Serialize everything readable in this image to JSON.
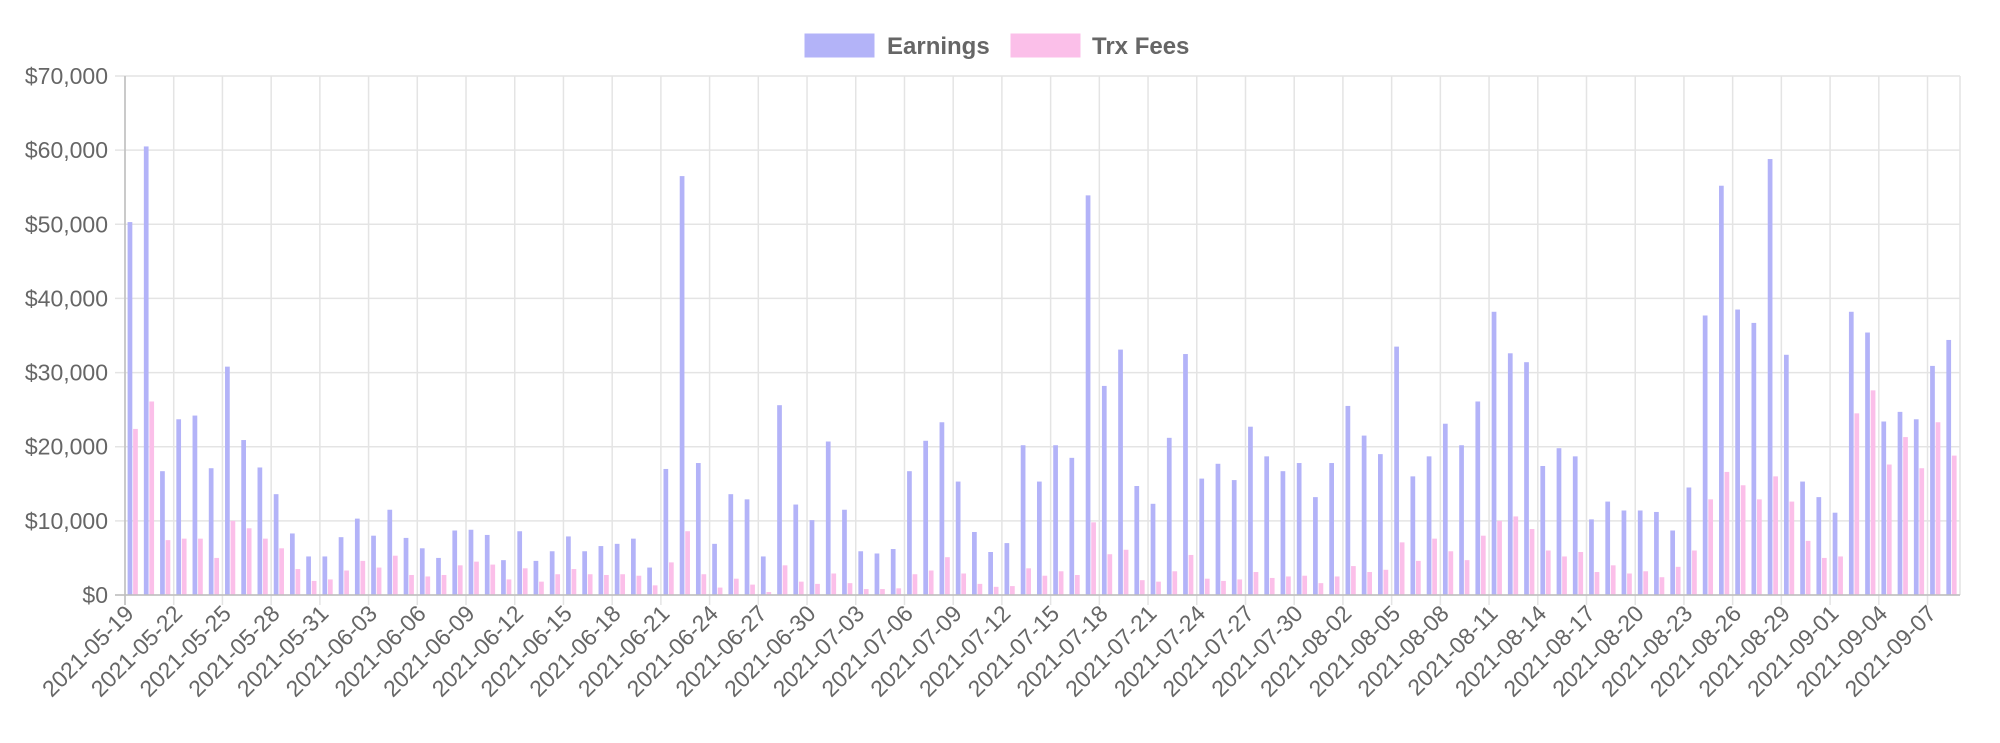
{
  "chart_data": {
    "type": "bar",
    "categories": [
      "2021-05-19",
      "2021-05-20",
      "2021-05-21",
      "2021-05-22",
      "2021-05-23",
      "2021-05-24",
      "2021-05-25",
      "2021-05-26",
      "2021-05-27",
      "2021-05-28",
      "2021-05-29",
      "2021-05-30",
      "2021-05-31",
      "2021-06-01",
      "2021-06-02",
      "2021-06-03",
      "2021-06-04",
      "2021-06-05",
      "2021-06-06",
      "2021-06-07",
      "2021-06-08",
      "2021-06-09",
      "2021-06-10",
      "2021-06-11",
      "2021-06-12",
      "2021-06-13",
      "2021-06-14",
      "2021-06-15",
      "2021-06-16",
      "2021-06-17",
      "2021-06-18",
      "2021-06-19",
      "2021-06-20",
      "2021-06-21",
      "2021-06-22",
      "2021-06-23",
      "2021-06-24",
      "2021-06-25",
      "2021-06-26",
      "2021-06-27",
      "2021-06-28",
      "2021-06-29",
      "2021-06-30",
      "2021-07-01",
      "2021-07-02",
      "2021-07-03",
      "2021-07-04",
      "2021-07-05",
      "2021-07-06",
      "2021-07-07",
      "2021-07-08",
      "2021-07-09",
      "2021-07-10",
      "2021-07-11",
      "2021-07-12",
      "2021-07-13",
      "2021-07-14",
      "2021-07-15",
      "2021-07-16",
      "2021-07-17",
      "2021-07-18",
      "2021-07-19",
      "2021-07-20",
      "2021-07-21",
      "2021-07-22",
      "2021-07-23",
      "2021-07-24",
      "2021-07-25",
      "2021-07-26",
      "2021-07-27",
      "2021-07-28",
      "2021-07-29",
      "2021-07-30",
      "2021-07-31",
      "2021-08-01",
      "2021-08-02",
      "2021-08-03",
      "2021-08-04",
      "2021-08-05",
      "2021-08-06",
      "2021-08-07",
      "2021-08-08",
      "2021-08-09",
      "2021-08-10",
      "2021-08-11",
      "2021-08-12",
      "2021-08-13",
      "2021-08-14",
      "2021-08-15",
      "2021-08-16",
      "2021-08-17",
      "2021-08-18",
      "2021-08-19",
      "2021-08-20",
      "2021-08-21",
      "2021-08-22",
      "2021-08-23",
      "2021-08-24",
      "2021-08-25",
      "2021-08-26",
      "2021-08-27",
      "2021-08-28",
      "2021-08-29",
      "2021-08-30",
      "2021-08-31",
      "2021-09-01",
      "2021-09-02",
      "2021-09-03",
      "2021-09-04",
      "2021-09-05",
      "2021-09-06",
      "2021-09-07",
      "2021-09-08"
    ],
    "x_tick_labels": [
      "2021-05-19",
      "2021-05-22",
      "2021-05-25",
      "2021-05-28",
      "2021-05-31",
      "2021-06-03",
      "2021-06-06",
      "2021-06-09",
      "2021-06-12",
      "2021-06-15",
      "2021-06-18",
      "2021-06-21",
      "2021-06-24",
      "2021-06-27",
      "2021-06-30",
      "2021-07-03",
      "2021-07-06",
      "2021-07-09",
      "2021-07-12",
      "2021-07-15",
      "2021-07-18",
      "2021-07-21",
      "2021-07-24",
      "2021-07-27",
      "2021-07-30",
      "2021-08-02",
      "2021-08-05",
      "2021-08-08",
      "2021-08-11",
      "2021-08-14",
      "2021-08-17",
      "2021-08-20",
      "2021-08-23",
      "2021-08-26",
      "2021-08-29",
      "2021-09-01",
      "2021-09-04",
      "2021-09-07"
    ],
    "series": [
      {
        "name": "Earnings",
        "color": "#b3b3f8",
        "values": [
          50300,
          60500,
          16700,
          23700,
          24200,
          17100,
          30800,
          20900,
          17200,
          13600,
          8300,
          5200,
          5200,
          7800,
          10300,
          8000,
          11500,
          7700,
          6300,
          5000,
          8700,
          8800,
          8100,
          4700,
          8600,
          4600,
          5900,
          7900,
          5900,
          6600,
          6900,
          7600,
          3700,
          17000,
          56500,
          17800,
          6900,
          13600,
          12900,
          5200,
          25600,
          12200,
          10100,
          20700,
          11500,
          5900,
          5600,
          6200,
          16700,
          20800,
          23300,
          15300,
          8500,
          5800,
          7000,
          20200,
          15300,
          20200,
          18500,
          53900,
          28200,
          33100,
          14700,
          12300,
          21200,
          32500,
          15700,
          17700,
          15500,
          22700,
          18700,
          16700,
          17800,
          13200,
          17800,
          25500,
          21500,
          19000,
          33500,
          16000,
          18700,
          23100,
          20200,
          26100,
          38200,
          32600,
          31400,
          17400,
          19800,
          18700,
          10200,
          12600,
          11400,
          11400,
          11200,
          8700,
          14500,
          37700,
          55200,
          38500,
          36700,
          58800,
          32400,
          15300,
          13200,
          11100,
          38200,
          35400,
          23400,
          24700,
          23700,
          30900,
          34400
        ]
      },
      {
        "name": "Trx Fees",
        "color": "#fbbfe9",
        "values": [
          22400,
          26100,
          7400,
          7600,
          7600,
          5000,
          10000,
          9000,
          7600,
          6300,
          3500,
          1900,
          2100,
          3300,
          4600,
          3700,
          5300,
          2700,
          2500,
          2700,
          4000,
          4500,
          4100,
          2100,
          3600,
          1800,
          2800,
          3500,
          2800,
          2700,
          2800,
          2600,
          1300,
          4400,
          8600,
          2800,
          1000,
          2200,
          1400,
          400,
          4000,
          1800,
          1500,
          2900,
          1600,
          800,
          800,
          900,
          2800,
          3300,
          5100,
          2900,
          1500,
          1100,
          1200,
          3600,
          2600,
          3200,
          2700,
          9800,
          5500,
          6100,
          2000,
          1800,
          3200,
          5400,
          2200,
          1900,
          2100,
          3100,
          2300,
          2500,
          2600,
          1600,
          2500,
          3900,
          3100,
          3400,
          7100,
          4600,
          7600,
          5900,
          4700,
          8000,
          10000,
          10600,
          8900,
          6000,
          5200,
          5800,
          3100,
          4000,
          2900,
          3200,
          2400,
          3800,
          6000,
          12900,
          16600,
          14800,
          12900,
          16000,
          12600,
          7300,
          5000,
          5200,
          24500,
          27600,
          17600,
          21300,
          17100,
          23300,
          18800
        ]
      }
    ],
    "ylim": [
      0,
      70000
    ],
    "y_tick_labels": [
      "$0",
      "$10,000",
      "$20,000",
      "$30,000",
      "$40,000",
      "$50,000",
      "$60,000",
      "$70,000"
    ],
    "legend": "top",
    "grid": true
  }
}
